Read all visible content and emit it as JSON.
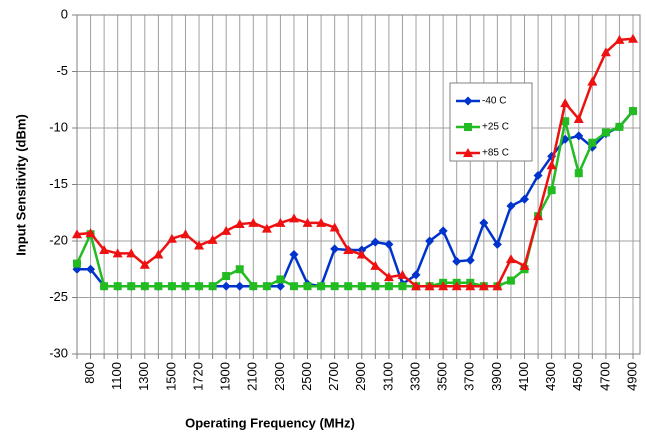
{
  "chart_data": {
    "type": "line",
    "xlabel": "Operating Frequency (MHz)",
    "ylabel": "Input Sensitivity (dBm)",
    "categories": [
      null,
      "800",
      null,
      "1100",
      null,
      "1300",
      null,
      "1500",
      null,
      "1720",
      null,
      "1900",
      null,
      "2100",
      null,
      "2300",
      null,
      "2500",
      null,
      "2700",
      null,
      "2900",
      null,
      "3100",
      null,
      "3300",
      null,
      "3500",
      null,
      "3700",
      null,
      "3900",
      null,
      "4100",
      null,
      "4300",
      null,
      "4500",
      null,
      "4700",
      null,
      "4900"
    ],
    "ylim": [
      -30,
      0
    ],
    "yticks": [
      0,
      -5,
      -10,
      -15,
      -20,
      -25,
      -30
    ],
    "grid": true,
    "legend": "upper right",
    "series": [
      {
        "name": "-40 C",
        "color": "#0033cc",
        "marker": "diamond",
        "values": [
          -22.5,
          -22.5,
          -24,
          -24,
          -24,
          -24,
          -24,
          -24,
          -24,
          -24,
          -24,
          -24,
          -24,
          -24,
          -24,
          -24,
          -21.2,
          -23.8,
          -24,
          -20.7,
          -20.8,
          -20.8,
          -20.1,
          -20.3,
          -23.8,
          -23,
          -20,
          -19.1,
          -21.8,
          -21.7,
          -18.4,
          -20.3,
          -16.9,
          -16.3,
          -14.2,
          -12.5,
          -11,
          -10.7,
          -11.7,
          -10.5,
          -9.9,
          -8.5
        ]
      },
      {
        "name": "+25 C",
        "color": "#22bb22",
        "marker": "square",
        "values": [
          -22,
          -19.4,
          -24,
          -24,
          -24,
          -24,
          -24,
          -24,
          -24,
          -24,
          -24,
          -23.1,
          -22.5,
          -24,
          -24,
          -23.4,
          -24,
          -24,
          -24,
          -24,
          -24,
          -24,
          -24,
          -24,
          -24,
          -24,
          -24,
          -23.7,
          -23.7,
          -23.7,
          -24,
          -24,
          -23.5,
          -22.5,
          -17.8,
          -15.5,
          -9.4,
          -14,
          -11.3,
          -10.4,
          -9.9,
          -8.5
        ]
      },
      {
        "name": "+85 C",
        "color": "#ee1111",
        "marker": "triangle",
        "values": [
          -19.4,
          -19.3,
          -20.8,
          -21.1,
          -21.1,
          -22.1,
          -21.2,
          -19.8,
          -19.4,
          -20.4,
          -19.9,
          -19.1,
          -18.5,
          -18.4,
          -18.9,
          -18.4,
          -18,
          -18.4,
          -18.4,
          -18.8,
          -20.8,
          -21.2,
          -22.2,
          -23.2,
          -23,
          -24,
          -24,
          -24,
          -24,
          -24,
          -24,
          -24,
          -21.6,
          -22.2,
          -17.8,
          -13.3,
          -7.8,
          -9.2,
          -5.9,
          -3.3,
          -2.2,
          -2.1
        ]
      }
    ]
  }
}
